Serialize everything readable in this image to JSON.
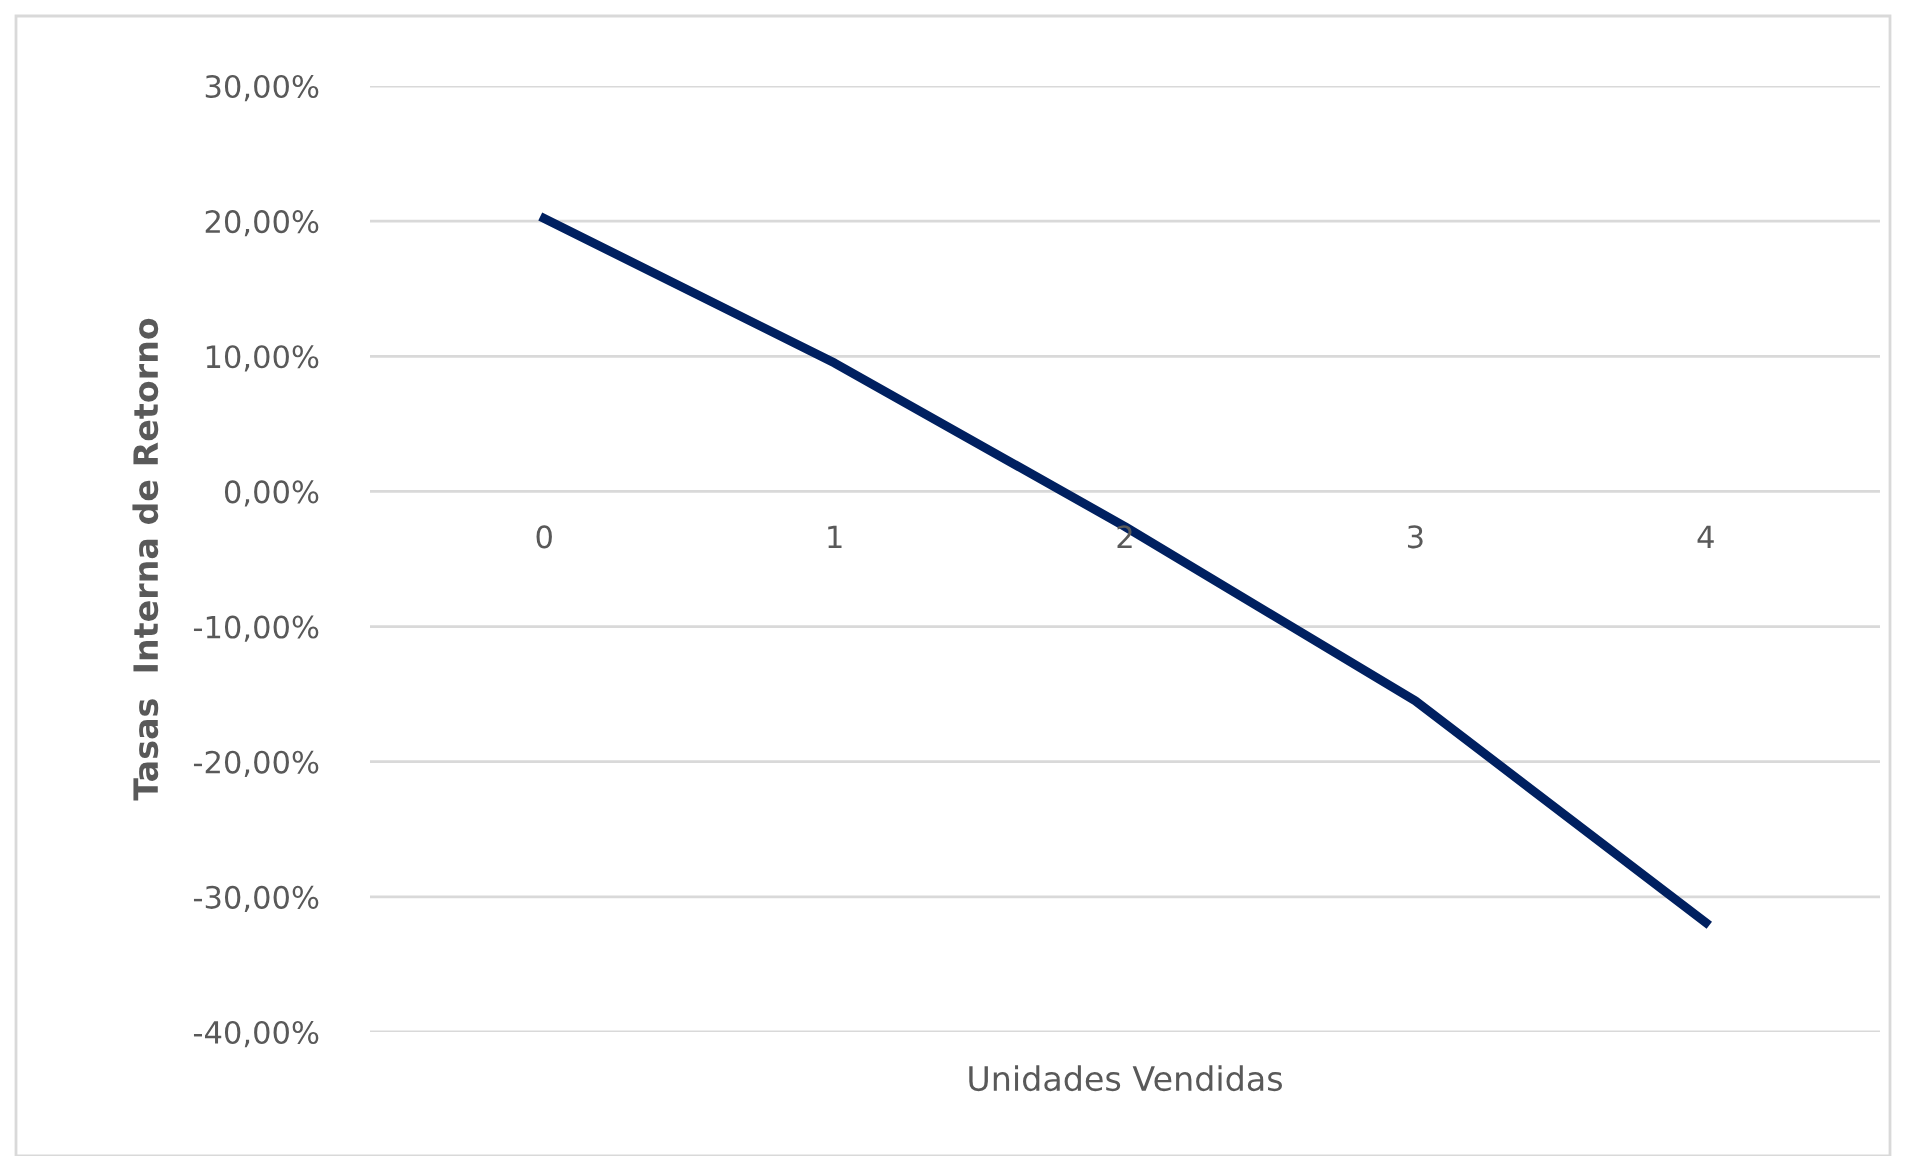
{
  "chart_data": {
    "type": "line",
    "xlabel": "Unidades Vendidas",
    "ylabel": "Tasas  Interna de Retorno",
    "categories": [
      "0",
      "1",
      "2",
      "3",
      "4"
    ],
    "series": [
      {
        "color": "#002060",
        "values": [
          20.2,
          9.5,
          -2.6,
          -15.5,
          -31.9
        ]
      }
    ],
    "ylim": [
      -40,
      30
    ],
    "yticks": [
      {
        "value": -40,
        "label": "-40,00%"
      },
      {
        "value": -30,
        "label": "-30,00%"
      },
      {
        "value": -20,
        "label": "-20,00%"
      },
      {
        "value": -10,
        "label": "-10,00%"
      },
      {
        "value": 0,
        "label": "0,00%"
      },
      {
        "value": 10,
        "label": "10,00%"
      },
      {
        "value": 20,
        "label": "20,00%"
      },
      {
        "value": 30,
        "label": "30,00%"
      }
    ],
    "grid": "y",
    "legend": false,
    "marker": "none",
    "line_style": "solid"
  }
}
